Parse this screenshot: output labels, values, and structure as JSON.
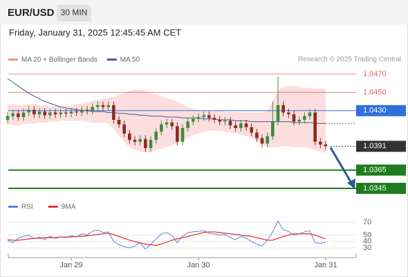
{
  "header": {
    "symbol": "EUR/USD",
    "interval": "30 MIN",
    "timestamp": "Friday, January 31, 2025 12:45:45 AM CET"
  },
  "chart_data": [
    {
      "type": "candlestick",
      "source": "Research © 2025 Trading Central",
      "legend": [
        {
          "name": "MA 20 + Bollinger Bands",
          "color": "#f08a84"
        },
        {
          "name": "MA 50",
          "color": "#3d5a99"
        }
      ],
      "categories": [
        null,
        null,
        null,
        null,
        null,
        null,
        null,
        null,
        null,
        null,
        null,
        null,
        "Jan 29",
        null,
        null,
        null,
        null,
        null,
        null,
        null,
        null,
        null,
        null,
        null,
        null,
        null,
        null,
        null,
        null,
        null,
        null,
        null,
        null,
        null,
        null,
        null,
        "Jan 30",
        null,
        null,
        null,
        null,
        null,
        null,
        null,
        null,
        null,
        null,
        null,
        null,
        null,
        null,
        null,
        null,
        null,
        null,
        null,
        null,
        null,
        null,
        null,
        "Jan 31"
      ],
      "open": [
        1.042,
        1.0424,
        1.0427,
        1.0423,
        1.0428,
        1.0431,
        1.0426,
        1.0429,
        1.0425,
        1.0428,
        1.0426,
        1.0428,
        1.0427,
        1.0429,
        1.0428,
        1.0431,
        1.043,
        1.0434,
        1.0436,
        1.0434,
        1.0436,
        1.042,
        1.0415,
        1.0405,
        1.0398,
        1.0396,
        1.0399,
        1.0389,
        1.0398,
        1.0407,
        1.0415,
        1.0417,
        1.0413,
        1.0396,
        1.0411,
        1.0418,
        1.0421,
        1.0423,
        1.0425,
        1.0422,
        1.042,
        1.0418,
        1.0419,
        1.0414,
        1.0411,
        1.0416,
        1.0412,
        1.0406,
        1.04,
        1.0394,
        1.0402,
        1.0418,
        1.0436,
        1.0428,
        1.0426,
        1.0418,
        1.042,
        1.0424,
        1.0428,
        1.0396,
        1.0393
      ],
      "high": [
        1.0428,
        1.0431,
        1.0431,
        1.0432,
        1.0435,
        1.0435,
        1.0433,
        1.0433,
        1.0432,
        1.0432,
        1.0432,
        1.0432,
        1.0433,
        1.0433,
        1.0435,
        1.0435,
        1.0438,
        1.044,
        1.044,
        1.044,
        1.044,
        1.0424,
        1.0419,
        1.0409,
        1.0402,
        1.0403,
        1.0403,
        1.0402,
        1.0411,
        1.0419,
        1.0421,
        1.0421,
        1.0417,
        1.0415,
        1.0422,
        1.0425,
        1.0427,
        1.0429,
        1.0429,
        1.0426,
        1.0424,
        1.0423,
        1.0423,
        1.0418,
        1.042,
        1.042,
        1.0416,
        1.041,
        1.0404,
        1.0406,
        1.044,
        1.0467,
        1.044,
        1.0432,
        1.043,
        1.0424,
        1.0428,
        1.0432,
        1.0432,
        1.04,
        1.0397
      ],
      "low": [
        1.0416,
        1.042,
        1.0419,
        1.0419,
        1.0424,
        1.0422,
        1.0422,
        1.0421,
        1.0421,
        1.0422,
        1.0422,
        1.0423,
        1.0423,
        1.0424,
        1.0424,
        1.0426,
        1.0426,
        1.043,
        1.043,
        1.043,
        1.0416,
        1.0411,
        1.0401,
        1.0394,
        1.0392,
        1.0392,
        1.0385,
        1.0385,
        1.0394,
        1.0403,
        1.0411,
        1.0409,
        1.0392,
        1.0392,
        1.0407,
        1.0414,
        1.0417,
        1.0419,
        1.0418,
        1.0416,
        1.0414,
        1.0414,
        1.041,
        1.0407,
        1.0407,
        1.0408,
        1.0402,
        1.0396,
        1.039,
        1.039,
        1.0398,
        1.0414,
        1.0424,
        1.0422,
        1.0414,
        1.0414,
        1.0416,
        1.042,
        1.0392,
        1.0389,
        1.0387
      ],
      "close": [
        1.0424,
        1.0427,
        1.0423,
        1.0428,
        1.0431,
        1.0426,
        1.0429,
        1.0425,
        1.0428,
        1.0426,
        1.0428,
        1.0427,
        1.0429,
        1.0428,
        1.0431,
        1.043,
        1.0434,
        1.0436,
        1.0434,
        1.0436,
        1.042,
        1.0415,
        1.0405,
        1.0398,
        1.0396,
        1.0399,
        1.0389,
        1.0398,
        1.0407,
        1.0415,
        1.0417,
        1.0413,
        1.0396,
        1.0411,
        1.0418,
        1.0421,
        1.0423,
        1.0425,
        1.0422,
        1.042,
        1.0418,
        1.0419,
        1.0414,
        1.0411,
        1.0416,
        1.0412,
        1.0406,
        1.04,
        1.0394,
        1.0402,
        1.0418,
        1.0436,
        1.0428,
        1.0426,
        1.0418,
        1.042,
        1.0424,
        1.0428,
        1.0396,
        1.0393,
        1.0391
      ],
      "ma50": [
        1.0465,
        1.0461,
        1.0457,
        1.0453,
        1.0449,
        1.0446,
        1.0443,
        1.044,
        1.0438,
        1.0436,
        1.0434,
        1.0433,
        1.0432,
        1.0431,
        1.043,
        1.043,
        1.0429,
        1.0429,
        1.0429,
        1.0428,
        1.0428,
        1.0427,
        1.0427,
        1.0426,
        1.0426,
        1.0425,
        1.0425,
        1.0424,
        1.0424,
        1.0424,
        1.0423,
        1.0423,
        1.0423,
        1.0422,
        1.0422,
        1.0422,
        1.0422,
        1.0421,
        1.0421,
        1.0421,
        1.042,
        1.042,
        1.042,
        1.0419,
        1.0419,
        1.0419,
        1.0418,
        1.0418,
        1.0418,
        1.0418,
        1.0418,
        1.0418,
        1.0418,
        1.0418,
        1.0417,
        1.0417,
        1.0417,
        1.0417,
        1.0416,
        1.0416,
        1.0416
      ],
      "bollinger_upper": [
        1.0437,
        1.0437,
        1.0436,
        1.0436,
        1.0437,
        1.0437,
        1.0436,
        1.0436,
        1.0435,
        1.0435,
        1.0435,
        1.0435,
        1.0436,
        1.0437,
        1.0438,
        1.0439,
        1.0441,
        1.0442,
        1.0443,
        1.0444,
        1.0445,
        1.0447,
        1.045,
        1.0452,
        1.0453,
        1.0453,
        1.0452,
        1.045,
        1.0448,
        1.0446,
        1.0444,
        1.0442,
        1.044,
        1.0437,
        1.0434,
        1.0432,
        1.0431,
        1.043,
        1.043,
        1.043,
        1.043,
        1.0429,
        1.0429,
        1.0429,
        1.0428,
        1.0428,
        1.0428,
        1.0428,
        1.0428,
        1.043,
        1.044,
        1.0452,
        1.0456,
        1.0457,
        1.0457,
        1.0456,
        1.0455,
        1.0455,
        1.0454,
        1.0454,
        1.0453
      ],
      "bollinger_lower": [
        1.0415,
        1.0414,
        1.0414,
        1.0415,
        1.0416,
        1.0416,
        1.0417,
        1.0417,
        1.0418,
        1.0418,
        1.0419,
        1.0419,
        1.0419,
        1.0419,
        1.0419,
        1.0418,
        1.0417,
        1.0417,
        1.0417,
        1.0416,
        1.041,
        1.0403,
        1.0396,
        1.039,
        1.0387,
        1.0385,
        1.0384,
        1.0385,
        1.0387,
        1.0388,
        1.039,
        1.0392,
        1.0394,
        1.0397,
        1.04,
        1.0403,
        1.0405,
        1.0407,
        1.0408,
        1.0408,
        1.0408,
        1.0407,
        1.0406,
        1.0405,
        1.0404,
        1.0402,
        1.04,
        1.0397,
        1.0394,
        1.039,
        1.039,
        1.039,
        1.0391,
        1.0391,
        1.039,
        1.039,
        1.039,
        1.0389,
        1.0387,
        1.0385,
        1.0384
      ],
      "up_color": "#3d8b3d",
      "down_color": "#8a2b22",
      "ylim": [
        1.0335,
        1.048
      ],
      "levels": [
        {
          "value": 1.047,
          "label": "1.0470",
          "color": "#e06666",
          "box": false,
          "weight": 1
        },
        {
          "value": 1.045,
          "label": "1.0450",
          "color": "#e06666",
          "box": false,
          "weight": 1
        },
        {
          "value": 1.043,
          "label": "1.0430",
          "color": "#2f6fdc",
          "box": true,
          "weight": 1
        },
        {
          "value": 1.0391,
          "label": "1.0391",
          "color": "#333333",
          "box": true,
          "weight": 1,
          "dash": true
        },
        {
          "value": 1.0365,
          "label": "1.0365",
          "color": "#1e7d1e",
          "box": true,
          "weight": 2
        },
        {
          "value": 1.0345,
          "label": "1.0345",
          "color": "#1e7d1e",
          "box": true,
          "weight": 2
        }
      ]
    },
    {
      "type": "line",
      "series": [
        {
          "name": "RSI",
          "color": "#5b7fe0",
          "values": [
            42,
            38,
            45,
            48,
            50,
            44,
            47,
            43,
            48,
            45,
            47,
            46,
            49,
            47,
            52,
            50,
            56,
            58,
            54,
            55,
            40,
            35,
            32,
            30,
            33,
            38,
            28,
            36,
            44,
            52,
            54,
            50,
            38,
            48,
            54,
            55,
            56,
            57,
            53,
            52,
            50,
            51,
            46,
            43,
            48,
            45,
            40,
            36,
            33,
            42,
            55,
            72,
            58,
            56,
            50,
            52,
            55,
            57,
            38,
            37,
            39
          ]
        },
        {
          "name": "9MA",
          "color": "#e53935",
          "values": [
            43,
            42,
            42,
            43,
            44,
            45,
            45,
            46,
            46,
            46,
            47,
            47,
            47,
            48,
            48,
            49,
            50,
            51,
            52,
            53,
            51,
            48,
            45,
            42,
            40,
            38,
            36,
            35,
            34,
            36,
            39,
            42,
            44,
            46,
            48,
            50,
            52,
            54,
            55,
            55,
            54,
            53,
            52,
            51,
            50,
            49,
            48,
            46,
            44,
            42,
            42,
            45,
            48,
            50,
            52,
            52,
            52,
            52,
            50,
            47,
            44
          ]
        }
      ],
      "ylim": [
        20,
        80
      ],
      "yticks": [
        30,
        40,
        50,
        70
      ]
    }
  ]
}
